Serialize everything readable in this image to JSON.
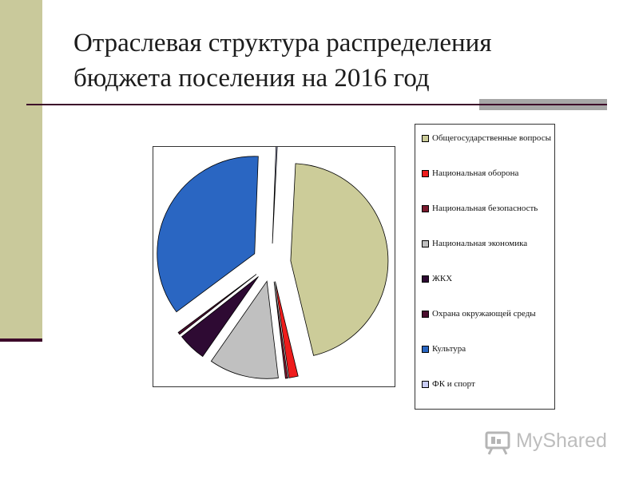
{
  "slide": {
    "title_line1": "Отраслевая структура распределения",
    "title_line2": "бюджета поселения на 2016 год"
  },
  "chart_data": {
    "type": "pie",
    "exploded": true,
    "categories": [
      "Общегосударственные вопросы",
      "Национальная оборона",
      "Национальная безопасность",
      "Национальная экономика",
      "ЖКХ",
      "Охрана окружающей среды",
      "Культура",
      "ФК и спорт"
    ],
    "values": [
      45.2,
      1.5,
      0.4,
      11.5,
      4.7,
      0.4,
      35.6,
      0.2
    ],
    "unit": "%",
    "colors": [
      "#cccc99",
      "#ee1c1c",
      "#7a1a2e",
      "#c0c0c0",
      "#2e0a33",
      "#4a0d2e",
      "#2a66c2",
      "#c8ccf5"
    ],
    "legend_position": "right",
    "title": ""
  },
  "watermark": {
    "text": "MyShared",
    "icon": "presentation-board-icon"
  }
}
